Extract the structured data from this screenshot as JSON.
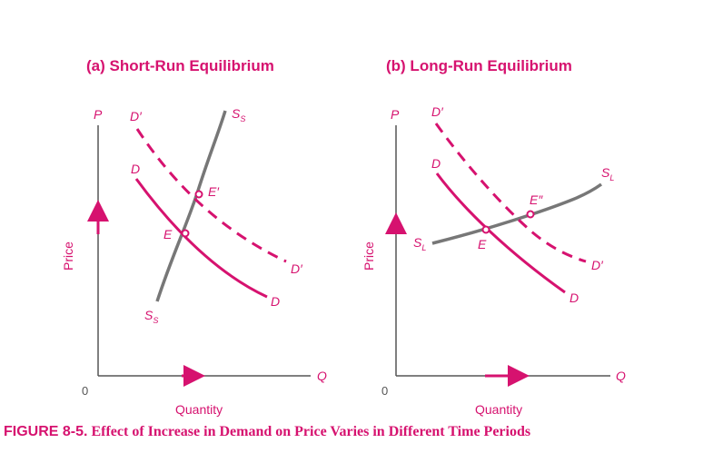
{
  "caption": {
    "prefix": "FIGURE 8-5.",
    "text": "Effect of Increase in Demand on Price Varies in Different Time Periods"
  },
  "colors": {
    "accent": "#d6126f",
    "supply": "#777777",
    "axis": "#555555"
  },
  "panel_a": {
    "title": "(a)  Short-Run Equilibrium",
    "y_axis_letter": "P",
    "x_axis_letter": "Q",
    "origin": "0",
    "y_axis_label": "Price",
    "x_axis_label": "Quantity",
    "labels": {
      "d_prime_top": "D′",
      "d_prime_bottom": "D′",
      "d_top": "D",
      "d_bottom": "D",
      "s_top": "S",
      "s_top_sub": "S",
      "s_bottom": "S",
      "s_bottom_sub": "S",
      "e": "E",
      "e_prime": "E′"
    }
  },
  "panel_b": {
    "title": "(b)  Long-Run Equilibrium",
    "y_axis_letter": "P",
    "x_axis_letter": "Q",
    "origin": "0",
    "y_axis_label": "Price",
    "x_axis_label": "Quantity",
    "labels": {
      "d_prime_top": "D′",
      "d_prime_bottom": "D′",
      "d_top": "D",
      "d_bottom": "D",
      "s_left": "S",
      "s_left_sub": "L",
      "s_right": "S",
      "s_right_sub": "L",
      "e": "E",
      "e_double_prime": "E″"
    }
  }
}
